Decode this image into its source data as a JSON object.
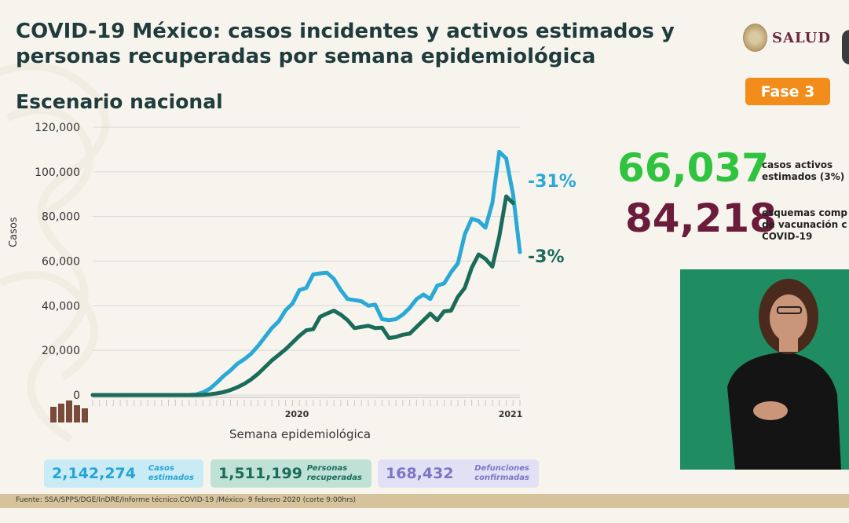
{
  "header": {
    "title_line1": "COVID-19 México: casos incidentes y activos estimados y",
    "title_line2": "personas recuperadas por semana epidemiológica",
    "subtitle": "Escenario nacional",
    "brand": "SALUD",
    "phase_badge": "Fase 3"
  },
  "stats": {
    "active_value": "66,037",
    "active_label_line1": "casos activos",
    "active_label_line2": "estimados (3%)",
    "vaccine_value": "84,218",
    "vaccine_label_line1": "esquemas comp",
    "vaccine_label_line2": "de vacunación c",
    "vaccine_label_line3": "COVID-19"
  },
  "chart_annotations": {
    "pct_top": "-31%",
    "pct_bottom": "-3%"
  },
  "chart_data": {
    "type": "line",
    "ylabel": "Casos",
    "xlabel": "Semana epidemiológica",
    "ylim": [
      0,
      120000
    ],
    "yticks": [
      "0",
      "20,000",
      "40,000",
      "60,000",
      "80,000",
      "100,000",
      "120,000"
    ],
    "year_labels": [
      "2020",
      "2021"
    ],
    "grid": true,
    "series": [
      {
        "color": "#2aa9d6",
        "values": [
          0,
          0,
          0,
          0,
          0,
          0,
          0,
          0,
          0,
          0,
          0,
          0,
          0,
          0,
          0,
          200,
          1200,
          2800,
          5500,
          8500,
          11000,
          14000,
          16000,
          18500,
          22000,
          26000,
          30000,
          33000,
          38000,
          41000,
          47000,
          48000,
          54000,
          54500,
          54800,
          52000,
          47000,
          43000,
          42500,
          42000,
          40000,
          40500,
          34000,
          33500,
          34000,
          36000,
          39000,
          43000,
          45000,
          43000,
          49000,
          50000,
          55000,
          59000,
          72000,
          79000,
          78000,
          75000,
          86000,
          109000,
          106000,
          90000,
          64000
        ]
      },
      {
        "color": "#1b6b5a",
        "values": [
          0,
          0,
          0,
          0,
          0,
          0,
          0,
          0,
          0,
          0,
          0,
          0,
          0,
          0,
          0,
          0,
          100,
          300,
          700,
          1300,
          2200,
          3500,
          5000,
          7000,
          9500,
          12500,
          15500,
          18000,
          20500,
          23500,
          26500,
          29000,
          29500,
          35000,
          36500,
          37800,
          36000,
          33500,
          30000,
          30500,
          31000,
          30000,
          30200,
          25500,
          26000,
          27000,
          27500,
          30500,
          33500,
          36500,
          33500,
          37500,
          37800,
          44000,
          48000,
          57000,
          63000,
          61000,
          57500,
          71000,
          89000,
          86000
        ]
      }
    ]
  },
  "summary": {
    "cases_value": "2,142,274",
    "cases_label_line1": "Casos",
    "cases_label_line2": "estimados",
    "recovered_value": "1,511,199",
    "recovered_label_line1": "Personas",
    "recovered_label_line2": "recuperadas",
    "deaths_value": "168,432",
    "deaths_label_line1": "Defunciones",
    "deaths_label_line2": "confirmadas"
  },
  "footer": {
    "source": "Fuente: SSA/SPPS/DGE/InDRE/Informe técnico.COVID-19 /México- 9 febrero 2020 (corte 9:00hrs)"
  },
  "icons": [
    "salud-seal-icon",
    "heritage-figures-icon",
    "interpreter-video"
  ],
  "colors": {
    "phase_badge": "#f28c1a",
    "active_green": "#2fc33e",
    "vaccine_maroon": "#6a1c3a",
    "estimated_blue": "#2aa9d6",
    "recovered_teal": "#1b6b5a",
    "deaths_purple": "#7c76c4"
  }
}
